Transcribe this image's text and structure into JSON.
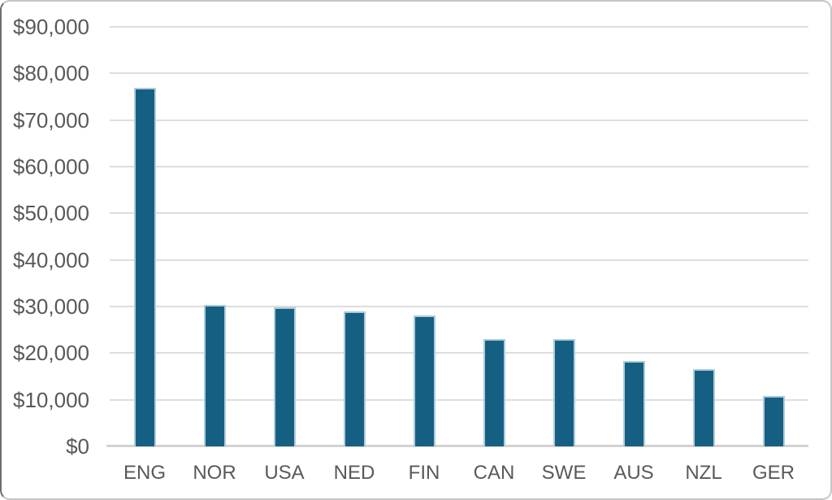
{
  "chart_data": {
    "type": "bar",
    "categories": [
      "ENG",
      "NOR",
      "USA",
      "NED",
      "FIN",
      "CAN",
      "SWE",
      "AUS",
      "NZL",
      "GER"
    ],
    "values": [
      77000,
      30300,
      29900,
      29000,
      28000,
      23000,
      23000,
      18300,
      16600,
      10900
    ],
    "title": "",
    "xlabel": "",
    "ylabel": "",
    "ylim": [
      0,
      90000
    ],
    "y_tick_labels": [
      "$90,000",
      "$80,000",
      "$70,000",
      "$60,000",
      "$50,000",
      "$40,000",
      "$30,000",
      "$20,000",
      "$10,000",
      "$0"
    ],
    "grid": true,
    "legend": false
  },
  "style": {
    "bar_fill": "#156082",
    "bar_border": "#aecbdc",
    "grid_color": "#dedede",
    "axis_color": "#d2d2d2",
    "text_color": "#595959",
    "background": "#ffffff",
    "frame_border": "#c6c6c6"
  }
}
